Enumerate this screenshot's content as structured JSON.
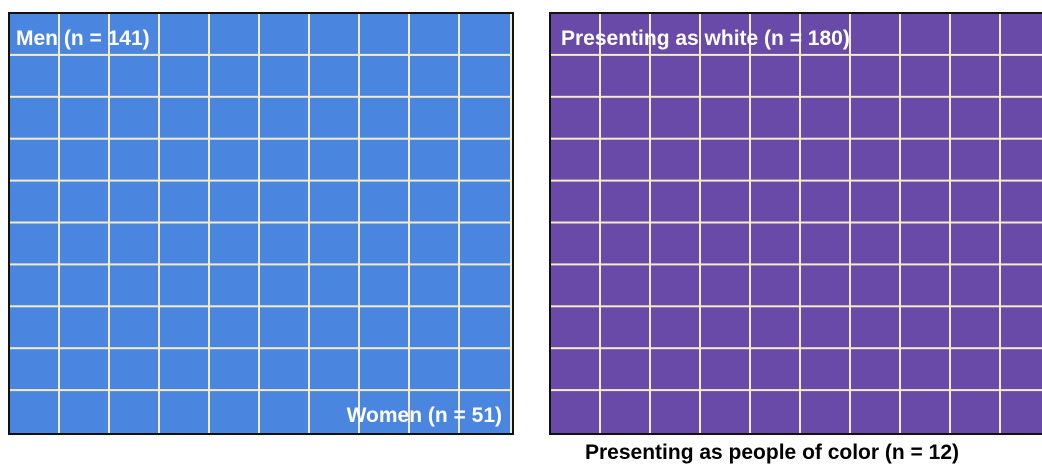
{
  "chart_data": [
    {
      "type": "waffle",
      "columns": 10,
      "rows": 10,
      "fill_order": "row-major, top-left first",
      "series": [
        {
          "name": "Men (n = 141)",
          "count": 141,
          "color": "#4a86e0"
        },
        {
          "name": "Women (n = 51)",
          "count": 51,
          "color": "#cc0000"
        }
      ],
      "labels": {
        "top": "Men (n = 141)",
        "bottom": "Women (n = 51)"
      }
    },
    {
      "type": "waffle",
      "columns": 10,
      "rows": 10,
      "fill_order": "row-major, top-left first",
      "series": [
        {
          "name": "Presenting as white (n = 180)",
          "count": 180,
          "color": "#6a4aa8"
        },
        {
          "name": "Presenting as people of color (n = 12)",
          "count": 12,
          "color": "#155159"
        }
      ],
      "labels": {
        "top": "Presenting as white (n = 180)",
        "below": "Presenting as people of color (n = 12)"
      }
    }
  ],
  "grid_line_color": "#f4ecc8"
}
